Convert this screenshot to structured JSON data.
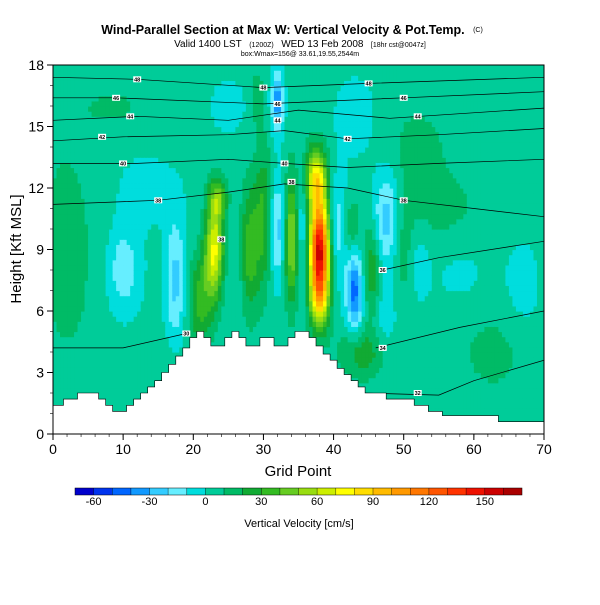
{
  "chart_data": {
    "type": "heatmap",
    "title": "Wind-Parallel Section at Max W: Vertical Velocity & Pot.Temp.",
    "title_unit": "(C)",
    "subtitle_left": "Valid 1400 LST",
    "subtitle_small1": "(1200Z)",
    "subtitle_mid": "WED 13 Feb 2008",
    "subtitle_small2": "[18hr cst@0047z]",
    "subtitle_line3": "box:Wmax=156@ 33.61,19.55,2544m",
    "xlabel": "Grid Point",
    "ylabel": "Height [Kft MSL]",
    "xlim": [
      0,
      70
    ],
    "ylim": [
      0,
      18
    ],
    "x_ticks": [
      "0",
      "10",
      "20",
      "30",
      "40",
      "50",
      "60",
      "70"
    ],
    "y_ticks": [
      "0",
      "3",
      "6",
      "9",
      "12",
      "15",
      "18"
    ],
    "colorbar": {
      "label": "Vertical Velocity [cm/s]",
      "range": [
        -70,
        170
      ],
      "ticks": [
        "-60",
        "-30",
        "0",
        "30",
        "60",
        "90",
        "120",
        "150"
      ],
      "colors": [
        "#0000cc",
        "#0033ee",
        "#0066ff",
        "#1199ff",
        "#33ccff",
        "#66eeff",
        "#00dddd",
        "#00cc99",
        "#00bb66",
        "#11aa33",
        "#33bb22",
        "#66cc22",
        "#99dd11",
        "#ccee00",
        "#ffff00",
        "#ffdd00",
        "#ffbb00",
        "#ff9900",
        "#ff7700",
        "#ff5500",
        "#ff3300",
        "#ee1100",
        "#cc0000",
        "#aa0000"
      ]
    },
    "terrain": {
      "x": [
        0,
        1,
        2,
        3,
        4,
        5,
        6,
        7,
        8,
        9,
        10,
        11,
        12,
        13,
        14,
        15,
        16,
        17,
        18,
        19,
        20,
        21,
        22,
        23,
        24,
        25,
        26,
        27,
        28,
        29,
        30,
        31,
        32,
        33,
        34,
        35,
        36,
        37,
        38,
        39,
        40,
        41,
        42,
        43,
        44,
        45,
        46,
        47,
        48,
        49,
        50,
        51,
        52,
        53,
        54,
        55,
        56,
        57,
        58,
        59,
        60,
        61,
        62,
        63,
        64,
        65,
        66,
        67,
        68,
        69,
        70
      ],
      "y": [
        1.4,
        1.4,
        1.7,
        1.7,
        2.0,
        2.0,
        2.0,
        1.7,
        1.4,
        1.1,
        1.1,
        1.4,
        1.7,
        2.0,
        2.3,
        2.6,
        3.0,
        3.4,
        3.8,
        4.2,
        4.7,
        5.0,
        4.7,
        4.3,
        4.3,
        4.7,
        5.0,
        4.7,
        4.3,
        4.3,
        4.7,
        4.7,
        4.3,
        4.3,
        4.7,
        5.0,
        5.0,
        4.7,
        4.3,
        3.9,
        3.6,
        3.2,
        2.9,
        2.6,
        2.3,
        2.0,
        2.0,
        2.0,
        1.7,
        1.7,
        1.7,
        1.7,
        1.4,
        1.4,
        1.1,
        1.1,
        0.9,
        0.9,
        0.9,
        0.9,
        0.9,
        0.9,
        0.9,
        0.9,
        0.6,
        0.6,
        0.6,
        0.6,
        0.6,
        0.6,
        0.6
      ]
    },
    "w_cells": [
      {
        "x": 2,
        "y": 9,
        "sx": 6,
        "sy": 8,
        "w": 8
      },
      {
        "x": 10,
        "y": 8,
        "sx": 2.5,
        "sy": 2.2,
        "w": -22
      },
      {
        "x": 15,
        "y": 3.5,
        "sx": 3,
        "sy": 1.5,
        "w": 6
      },
      {
        "x": 13,
        "y": 12,
        "sx": 5,
        "sy": 2,
        "w": -8
      },
      {
        "x": 17.5,
        "y": 7.5,
        "sx": 1.5,
        "sy": 3,
        "w": -28
      },
      {
        "x": 21,
        "y": 6.5,
        "sx": 1.8,
        "sy": 2.2,
        "w": 30
      },
      {
        "x": 23,
        "y": 9,
        "sx": 1.3,
        "sy": 2.2,
        "w": 68
      },
      {
        "x": 23.5,
        "y": 11.5,
        "sx": 1.3,
        "sy": 1,
        "w": 38
      },
      {
        "x": 26,
        "y": 8,
        "sx": 1.5,
        "sy": 3,
        "w": -5
      },
      {
        "x": 28,
        "y": 9,
        "sx": 1.3,
        "sy": 3,
        "w": 32
      },
      {
        "x": 30,
        "y": 10.5,
        "sx": 1.3,
        "sy": 3.5,
        "w": 28
      },
      {
        "x": 32,
        "y": 10,
        "sx": 1.2,
        "sy": 2.5,
        "w": -30
      },
      {
        "x": 34,
        "y": 9.5,
        "sx": 1,
        "sy": 3,
        "w": 50
      },
      {
        "x": 35.5,
        "y": 10,
        "sx": 0.8,
        "sy": 3,
        "w": -20
      },
      {
        "x": 38,
        "y": 9,
        "sx": 1.4,
        "sy": 2.4,
        "w": 150
      },
      {
        "x": 37.5,
        "y": 12.5,
        "sx": 1.5,
        "sy": 1.5,
        "w": 70
      },
      {
        "x": 38,
        "y": 6.5,
        "sx": 1.4,
        "sy": 1.5,
        "w": 48
      },
      {
        "x": 40.5,
        "y": 10,
        "sx": 1.5,
        "sy": 2.5,
        "w": -22
      },
      {
        "x": 43,
        "y": 7,
        "sx": 1.2,
        "sy": 2,
        "w": -48
      },
      {
        "x": 42.5,
        "y": 10,
        "sx": 1.3,
        "sy": 1.5,
        "w": 18
      },
      {
        "x": 45.5,
        "y": 8,
        "sx": 1.3,
        "sy": 2.5,
        "w": 28
      },
      {
        "x": 47.5,
        "y": 10.5,
        "sx": 2,
        "sy": 2.2,
        "w": -32
      },
      {
        "x": 47,
        "y": 6,
        "sx": 2,
        "sy": 2,
        "w": -12
      },
      {
        "x": 50,
        "y": 9,
        "sx": 1.6,
        "sy": 2.5,
        "w": 14
      },
      {
        "x": 52,
        "y": 8.5,
        "sx": 1.6,
        "sy": 2,
        "w": -10
      },
      {
        "x": 44,
        "y": 4,
        "sx": 3,
        "sy": 1.2,
        "w": 24
      },
      {
        "x": 55,
        "y": 11,
        "sx": 6,
        "sy": 2,
        "w": 10
      },
      {
        "x": 58,
        "y": 8,
        "sx": 5,
        "sy": 2,
        "w": -6
      },
      {
        "x": 63,
        "y": 4,
        "sx": 5,
        "sy": 2,
        "w": 10
      },
      {
        "x": 67,
        "y": 7,
        "sx": 3,
        "sy": 3,
        "w": -7
      },
      {
        "x": 32,
        "y": 16.2,
        "sx": 0.9,
        "sy": 1.5,
        "w": -40
      },
      {
        "x": 29,
        "y": 16.5,
        "sx": 0.9,
        "sy": 1.2,
        "w": 15
      },
      {
        "x": 43,
        "y": 15.5,
        "sx": 3,
        "sy": 2,
        "w": -10
      },
      {
        "x": 10,
        "y": 16,
        "sx": 6,
        "sy": 1.5,
        "w": 6
      },
      {
        "x": 52,
        "y": 14,
        "sx": 4,
        "sy": 2,
        "w": 10
      },
      {
        "x": 25,
        "y": 16,
        "sx": 3,
        "sy": 1.5,
        "w": -8
      }
    ],
    "theta_contours": [
      {
        "label": "30",
        "points": [
          [
            0,
            4.2
          ],
          [
            10,
            4.2
          ],
          [
            19,
            4.9
          ]
        ],
        "label_at": [
          19,
          4.9
        ]
      },
      {
        "label": "32",
        "points": [
          [
            44,
            2.0
          ],
          [
            55,
            1.9
          ],
          [
            60,
            2.6
          ],
          [
            70,
            3.6
          ]
        ],
        "label_at": [
          52,
          2.0
        ]
      },
      {
        "label": "34",
        "points": [
          [
            46,
            4.2
          ],
          [
            58,
            5.2
          ],
          [
            70,
            6.0
          ]
        ],
        "label_at": [
          47,
          4.2
        ]
      },
      {
        "label": "36",
        "points": [
          [
            47,
            8.0
          ],
          [
            55,
            8.6
          ],
          [
            70,
            9.4
          ]
        ],
        "label_at": [
          47,
          8.0
        ]
      },
      {
        "label": "38",
        "points": [
          [
            0,
            11.2
          ],
          [
            15,
            11.4
          ],
          [
            25,
            11.8
          ],
          [
            33,
            12.2
          ],
          [
            42,
            12.0
          ],
          [
            50,
            11.4
          ],
          [
            60,
            11.0
          ],
          [
            70,
            10.6
          ]
        ],
        "label_at": [
          15,
          11.4
        ],
        "label_text": "38"
      },
      {
        "label": "38",
        "points": [
          [
            50,
            11.4
          ]
        ],
        "label_at": [
          50,
          11.4
        ]
      },
      {
        "label": "38",
        "points": [
          [
            24,
            9.5
          ]
        ],
        "label_at": [
          24,
          9.5
        ]
      },
      {
        "label": "38",
        "points": [
          [
            34,
            12.3
          ]
        ],
        "label_at": [
          34,
          12.3
        ]
      },
      {
        "label": "40",
        "points": [
          [
            0,
            13.2
          ],
          [
            12,
            13.2
          ],
          [
            25,
            13.4
          ],
          [
            33,
            13.2
          ],
          [
            42,
            13.0
          ],
          [
            55,
            13.2
          ],
          [
            70,
            13.4
          ]
        ],
        "label_at": [
          10,
          13.2
        ]
      },
      {
        "label": "40",
        "points": [
          [
            33,
            13.2
          ]
        ],
        "label_at": [
          33,
          13.2
        ]
      },
      {
        "label": "42",
        "points": [
          [
            0,
            14.3
          ],
          [
            10,
            14.5
          ],
          [
            25,
            14.6
          ],
          [
            33,
            14.8
          ],
          [
            42,
            14.4
          ],
          [
            55,
            14.6
          ],
          [
            70,
            14.9
          ]
        ],
        "label_at": [
          7,
          14.5
        ]
      },
      {
        "label": "42",
        "points": [
          [
            42,
            14.4
          ]
        ],
        "label_at": [
          42,
          14.4
        ]
      },
      {
        "label": "44",
        "points": [
          [
            0,
            15.3
          ],
          [
            12,
            15.5
          ],
          [
            25,
            15.3
          ],
          [
            35,
            15.8
          ],
          [
            48,
            15.4
          ],
          [
            70,
            15.9
          ]
        ],
        "label_at": [
          11,
          15.5
        ]
      },
      {
        "label": "44",
        "points": [
          [
            32,
            15.3
          ]
        ],
        "label_at": [
          32,
          15.3
        ]
      },
      {
        "label": "44",
        "points": [
          [
            52,
            15.5
          ]
        ],
        "label_at": [
          52,
          15.5
        ]
      },
      {
        "label": "46",
        "points": [
          [
            0,
            16.4
          ],
          [
            9,
            16.4
          ],
          [
            30,
            16.1
          ],
          [
            50,
            16.4
          ],
          [
            70,
            16.7
          ]
        ],
        "label_at": [
          9,
          16.4
        ]
      },
      {
        "label": "46",
        "points": [
          [
            32,
            16.1
          ]
        ],
        "label_at": [
          32,
          16.1
        ]
      },
      {
        "label": "46",
        "points": [
          [
            50,
            16.4
          ]
        ],
        "label_at": [
          50,
          16.4
        ]
      },
      {
        "label": "48",
        "points": [
          [
            0,
            17.4
          ],
          [
            12,
            17.3
          ],
          [
            30,
            16.9
          ],
          [
            45,
            17.1
          ],
          [
            70,
            17.4
          ]
        ],
        "label_at": [
          12,
          17.3
        ]
      },
      {
        "label": "48",
        "points": [
          [
            30,
            16.9
          ]
        ],
        "label_at": [
          30,
          16.9
        ]
      },
      {
        "label": "48",
        "points": [
          [
            45,
            17.1
          ]
        ],
        "label_at": [
          45,
          17.1
        ]
      }
    ],
    "grid": false,
    "legend": "none"
  }
}
